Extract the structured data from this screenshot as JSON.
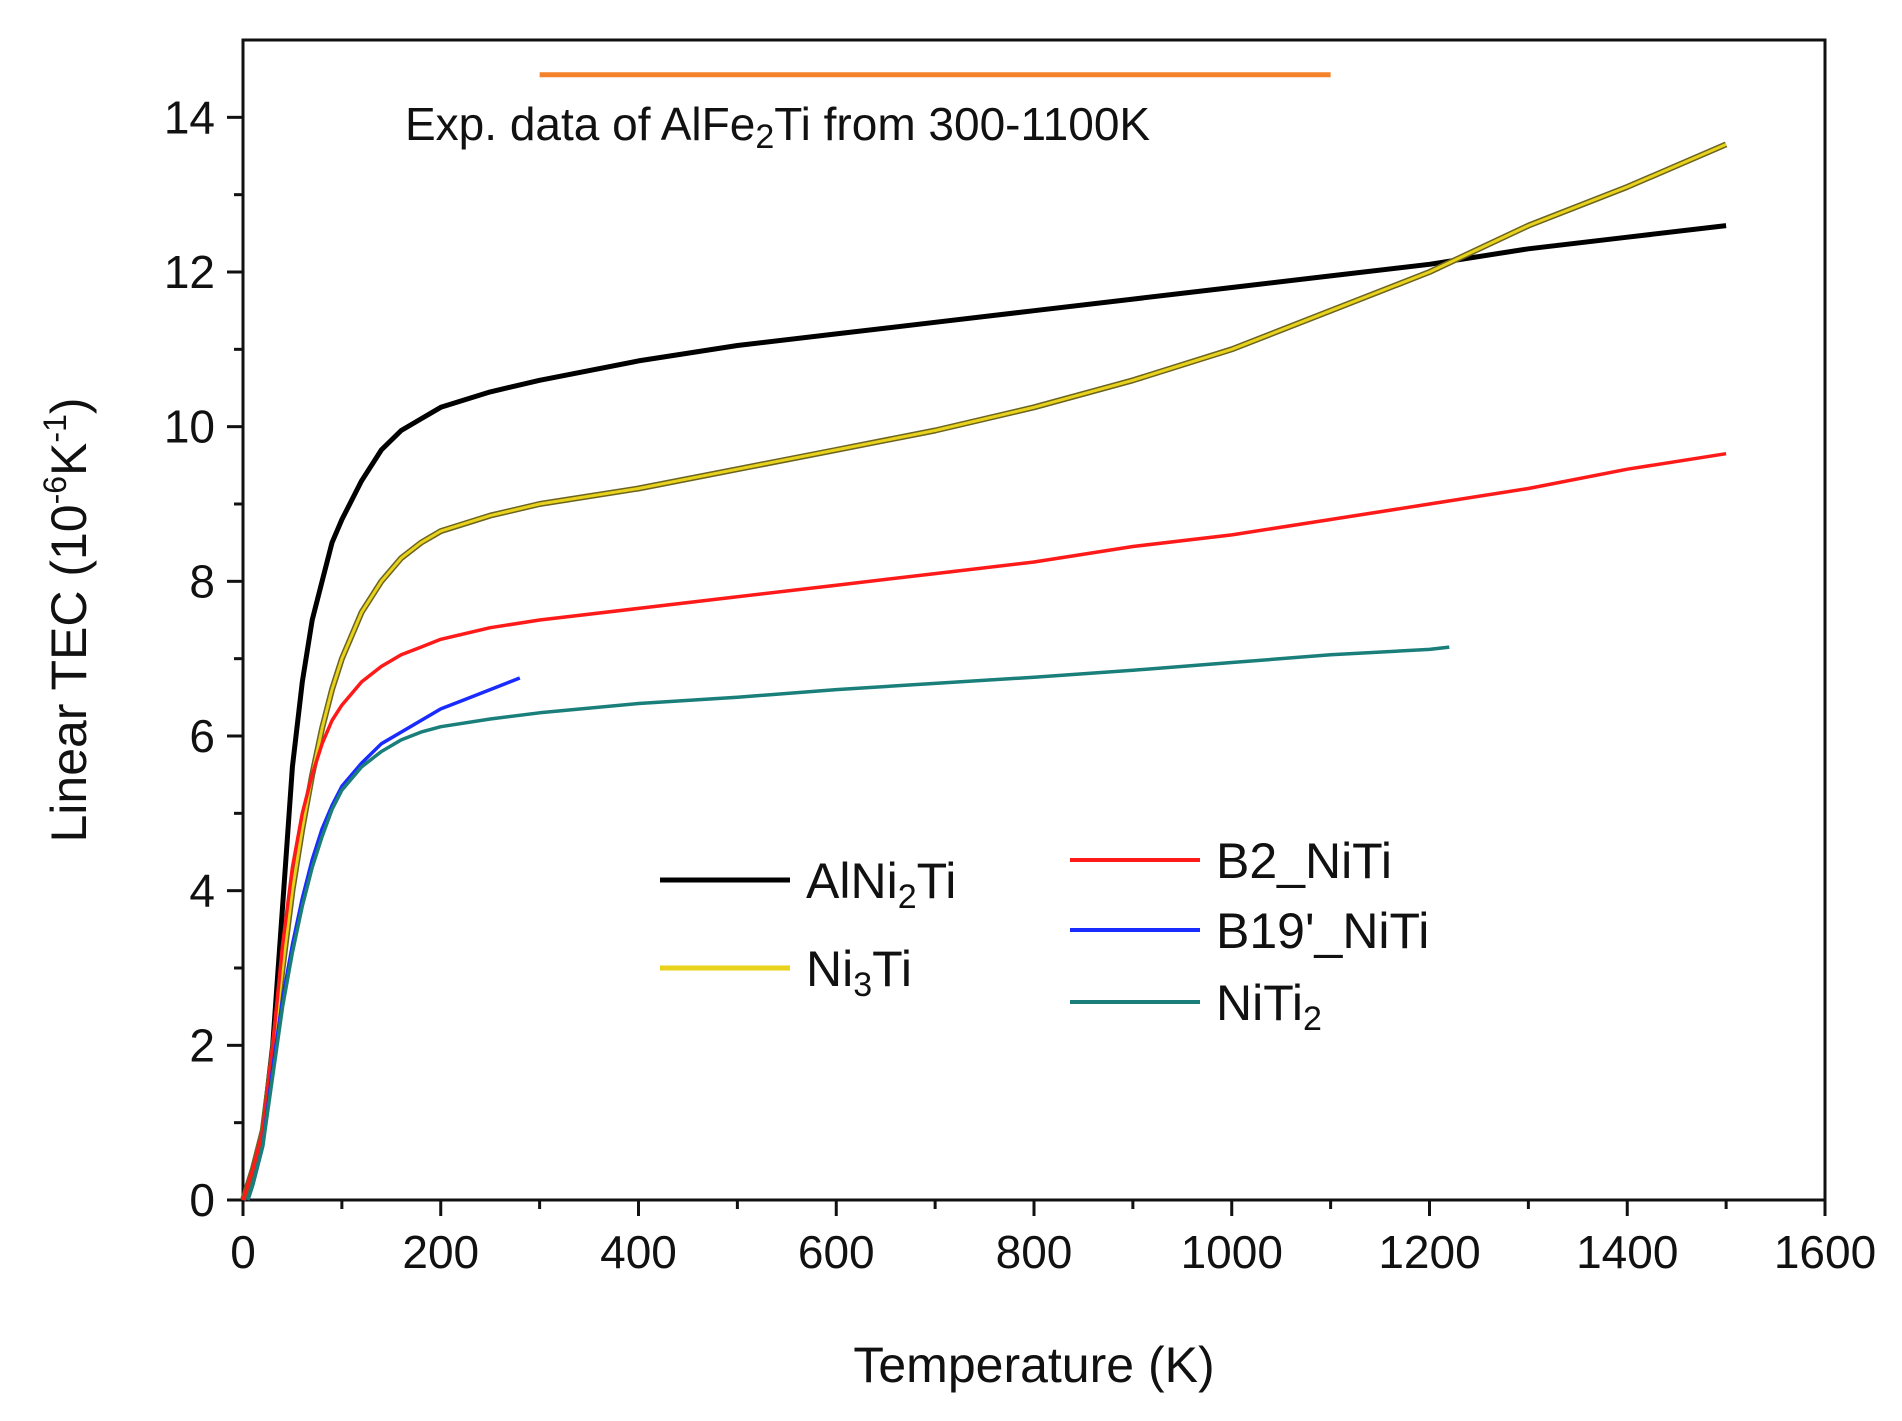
{
  "chart_data": {
    "type": "line",
    "title": "",
    "xlabel": "Temperature (K)",
    "ylabel": {
      "main": "Linear TEC (10",
      "exp1": "-6",
      "mid": "K",
      "exp2": "-1",
      "end": ")"
    },
    "xlim": [
      0,
      1600
    ],
    "ylim": [
      0,
      15
    ],
    "xticks": [
      0,
      200,
      400,
      600,
      800,
      1000,
      1200,
      1400,
      1600
    ],
    "yticks": [
      0,
      2,
      4,
      6,
      8,
      10,
      12,
      14
    ],
    "grid": false,
    "legend_position": "center",
    "series": [
      {
        "name": "AlNi2Ti",
        "label": {
          "pre": "AlNi",
          "sub": "2",
          "post": "Ti"
        },
        "color": "#000000",
        "x": [
          0,
          10,
          20,
          30,
          40,
          50,
          60,
          70,
          80,
          90,
          100,
          120,
          140,
          160,
          180,
          200,
          250,
          300,
          400,
          500,
          600,
          700,
          800,
          900,
          1000,
          1100,
          1200,
          1300,
          1400,
          1500
        ],
        "y": [
          0,
          0.4,
          0.9,
          2.0,
          3.8,
          5.6,
          6.7,
          7.5,
          8.0,
          8.5,
          8.8,
          9.3,
          9.7,
          9.95,
          10.1,
          10.25,
          10.45,
          10.6,
          10.85,
          11.05,
          11.2,
          11.35,
          11.5,
          11.65,
          11.8,
          11.95,
          12.1,
          12.3,
          12.45,
          12.6
        ]
      },
      {
        "name": "Ni3Ti",
        "label": {
          "pre": "Ni",
          "sub": "3",
          "post": "Ti"
        },
        "color": "#e8d21b",
        "x": [
          0,
          10,
          20,
          30,
          40,
          50,
          60,
          70,
          80,
          90,
          100,
          120,
          140,
          160,
          180,
          200,
          250,
          300,
          400,
          500,
          600,
          700,
          800,
          900,
          1000,
          1100,
          1200,
          1300,
          1400,
          1500
        ],
        "y": [
          0,
          0.4,
          0.9,
          1.9,
          3.0,
          4.0,
          4.8,
          5.5,
          6.1,
          6.6,
          7.0,
          7.6,
          8.0,
          8.3,
          8.5,
          8.65,
          8.85,
          9.0,
          9.2,
          9.45,
          9.7,
          9.95,
          10.25,
          10.6,
          11.0,
          11.5,
          12.0,
          12.6,
          13.1,
          13.65
        ]
      },
      {
        "name": "B2_NiTi",
        "label": {
          "pre": "B2_NiTi",
          "sub": "",
          "post": ""
        },
        "color": "#ff1a1a",
        "x": [
          0,
          10,
          20,
          30,
          40,
          50,
          60,
          70,
          80,
          90,
          100,
          120,
          140,
          160,
          180,
          200,
          250,
          300,
          400,
          500,
          600,
          700,
          800,
          900,
          1000,
          1100,
          1200,
          1300,
          1400,
          1500
        ],
        "y": [
          0,
          0.4,
          0.9,
          2.0,
          3.3,
          4.3,
          5.0,
          5.5,
          5.9,
          6.2,
          6.4,
          6.7,
          6.9,
          7.05,
          7.15,
          7.25,
          7.4,
          7.5,
          7.65,
          7.8,
          7.95,
          8.1,
          8.25,
          8.45,
          8.6,
          8.8,
          9.0,
          9.2,
          9.45,
          9.65
        ]
      },
      {
        "name": "B19'_NiTi",
        "label": {
          "pre": "B19'_NiTi",
          "sub": "",
          "post": ""
        },
        "color": "#1a2bff",
        "x": [
          5,
          10,
          20,
          30,
          40,
          50,
          60,
          70,
          80,
          90,
          100,
          120,
          140,
          160,
          180,
          200,
          220,
          240,
          260,
          280
        ],
        "y": [
          0,
          0.2,
          0.7,
          1.7,
          2.6,
          3.3,
          3.9,
          4.4,
          4.8,
          5.1,
          5.35,
          5.65,
          5.9,
          6.05,
          6.2,
          6.35,
          6.45,
          6.55,
          6.65,
          6.75
        ]
      },
      {
        "name": "NiTi2",
        "label": {
          "pre": "NiTi",
          "sub": "2",
          "post": ""
        },
        "color": "#1a7f7a",
        "x": [
          5,
          10,
          20,
          30,
          40,
          50,
          60,
          70,
          80,
          90,
          100,
          120,
          140,
          160,
          180,
          200,
          250,
          300,
          400,
          500,
          600,
          700,
          800,
          900,
          1000,
          1100,
          1200,
          1220
        ],
        "y": [
          0,
          0.2,
          0.7,
          1.6,
          2.5,
          3.2,
          3.8,
          4.3,
          4.7,
          5.05,
          5.3,
          5.6,
          5.8,
          5.95,
          6.05,
          6.12,
          6.22,
          6.3,
          6.42,
          6.5,
          6.6,
          6.68,
          6.76,
          6.85,
          6.95,
          7.05,
          7.12,
          7.15
        ]
      }
    ],
    "annotation": {
      "text_pre": "Exp. data of AlFe",
      "text_sub": "2",
      "text_post": "Ti from 300-1100K",
      "x_range": [
        300,
        1100
      ],
      "y_value": 14.55,
      "color": "#f5822a"
    }
  }
}
